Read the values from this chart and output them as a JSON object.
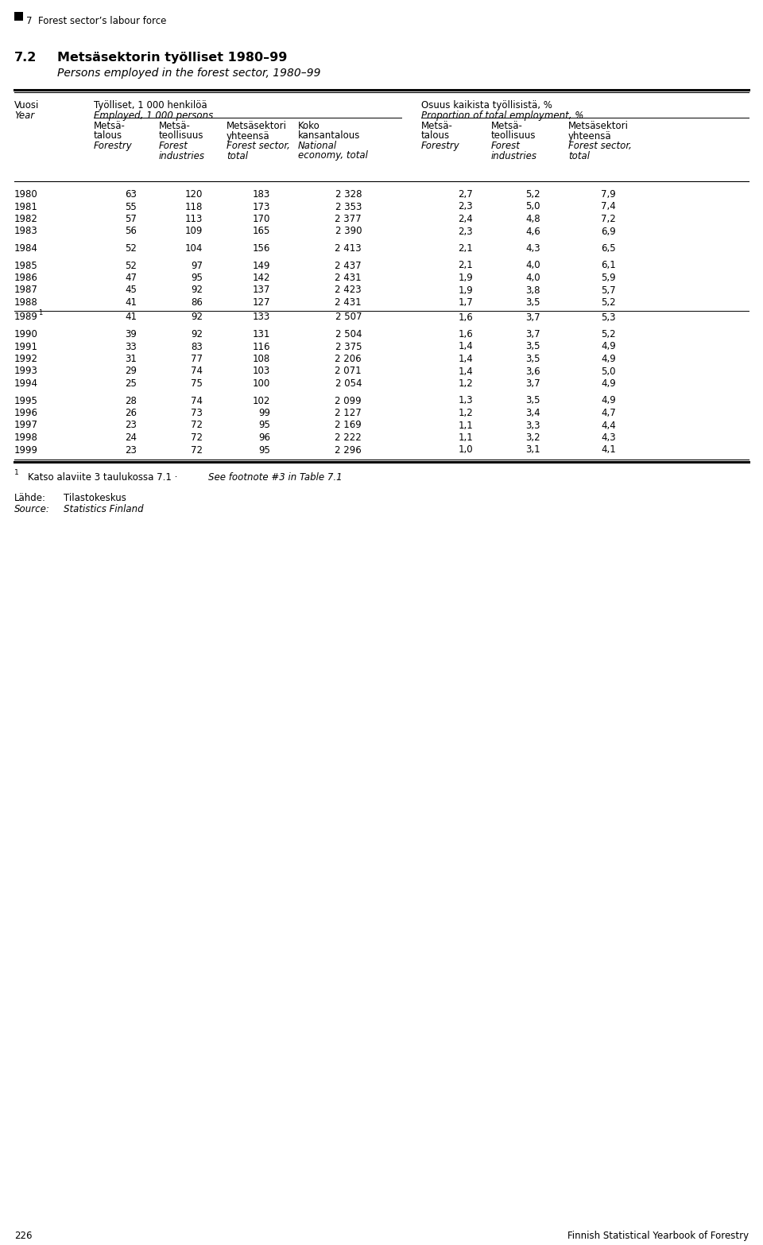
{
  "chapter_label": "7  Forest sector’s labour force",
  "section_num": "7.2",
  "title_fi": "Metsäsektorin työlliset 1980–99",
  "title_en": "Persons employed in the forest sector, 1980–99",
  "col_group1_header": "Työlliset, 1 000 henkilöä",
  "col_group1_subheader": "Employed, 1 000 persons",
  "col_group2_header": "Osuus kaikista työllisistä, %",
  "col_group2_subheader": "Proportion of total employment, %",
  "rows": [
    {
      "year": "1980",
      "sup": false,
      "vals": [
        63,
        120,
        183,
        "2 328",
        2.7,
        5.2,
        7.9
      ]
    },
    {
      "year": "1981",
      "sup": false,
      "vals": [
        55,
        118,
        173,
        "2 353",
        2.3,
        5.0,
        7.4
      ]
    },
    {
      "year": "1982",
      "sup": false,
      "vals": [
        57,
        113,
        170,
        "2 377",
        2.4,
        4.8,
        7.2
      ]
    },
    {
      "year": "1983",
      "sup": false,
      "vals": [
        56,
        109,
        165,
        "2 390",
        2.3,
        4.6,
        6.9
      ]
    },
    {
      "year": "1984",
      "sup": false,
      "vals": [
        52,
        104,
        156,
        "2 413",
        2.1,
        4.3,
        6.5
      ]
    },
    {
      "year": "1985",
      "sup": false,
      "vals": [
        52,
        97,
        149,
        "2 437",
        2.1,
        4.0,
        6.1
      ]
    },
    {
      "year": "1986",
      "sup": false,
      "vals": [
        47,
        95,
        142,
        "2 431",
        1.9,
        4.0,
        5.9
      ]
    },
    {
      "year": "1987",
      "sup": false,
      "vals": [
        45,
        92,
        137,
        "2 423",
        1.9,
        3.8,
        5.7
      ]
    },
    {
      "year": "1988",
      "sup": false,
      "vals": [
        41,
        86,
        127,
        "2 431",
        1.7,
        3.5,
        5.2
      ]
    },
    {
      "year": "1989",
      "sup": true,
      "vals": [
        41,
        92,
        133,
        "2 507",
        1.6,
        3.7,
        5.3
      ]
    },
    {
      "year": "1990",
      "sup": false,
      "vals": [
        39,
        92,
        131,
        "2 504",
        1.6,
        3.7,
        5.2
      ]
    },
    {
      "year": "1991",
      "sup": false,
      "vals": [
        33,
        83,
        116,
        "2 375",
        1.4,
        3.5,
        4.9
      ]
    },
    {
      "year": "1992",
      "sup": false,
      "vals": [
        31,
        77,
        108,
        "2 206",
        1.4,
        3.5,
        4.9
      ]
    },
    {
      "year": "1993",
      "sup": false,
      "vals": [
        29,
        74,
        103,
        "2 071",
        1.4,
        3.6,
        5.0
      ]
    },
    {
      "year": "1994",
      "sup": false,
      "vals": [
        25,
        75,
        100,
        "2 054",
        1.2,
        3.7,
        4.9
      ]
    },
    {
      "year": "1995",
      "sup": false,
      "vals": [
        28,
        74,
        102,
        "2 099",
        1.3,
        3.5,
        4.9
      ]
    },
    {
      "year": "1996",
      "sup": false,
      "vals": [
        26,
        73,
        99,
        "2 127",
        1.2,
        3.4,
        4.7
      ]
    },
    {
      "year": "1997",
      "sup": false,
      "vals": [
        23,
        72,
        95,
        "2 169",
        1.1,
        3.3,
        4.4
      ]
    },
    {
      "year": "1998",
      "sup": false,
      "vals": [
        24,
        72,
        96,
        "2 222",
        1.1,
        3.2,
        4.3
      ]
    },
    {
      "year": "1999",
      "sup": false,
      "vals": [
        23,
        72,
        95,
        "2 296",
        1.0,
        3.1,
        4.1
      ]
    }
  ],
  "source_label_fi": "Lähde:",
  "source_fi": "Tilastokeskus",
  "source_label_en": "Source:",
  "source_en": "Statistics Finland",
  "page_left": "226",
  "page_right": "Finnish Statistical Yearbook of Forestry",
  "bg_color": "#ffffff"
}
